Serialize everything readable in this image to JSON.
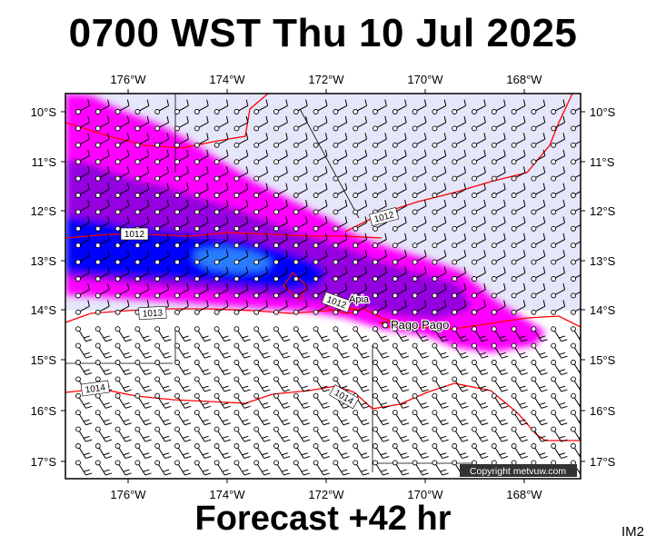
{
  "title": "0700 WST Thu 10 Jul 2025",
  "footer": "Forecast +42 hr",
  "model_code": "IM2",
  "copyright": "Copyright metvuw.com",
  "map": {
    "lon_labels": [
      "176°W",
      "174°W",
      "172°W",
      "170°W",
      "168°W"
    ],
    "lat_labels": [
      "10°S",
      "11°S",
      "12°S",
      "13°S",
      "14°S",
      "15°S",
      "16°S",
      "17°S"
    ],
    "place": "Pago Pago",
    "place_partial": "Apia",
    "isobar_labels": [
      "1012",
      "1012",
      "1013",
      "1012",
      "1014",
      "1014"
    ]
  },
  "colors": {
    "background": "#e6e6fa",
    "rain_light": "#ff00ff",
    "rain_medium": "#9400e0",
    "rain_heavy": "#0000ff",
    "rain_extreme": "#2a7dff",
    "isobar": "#ff0000",
    "coastline": "#ff0000"
  }
}
